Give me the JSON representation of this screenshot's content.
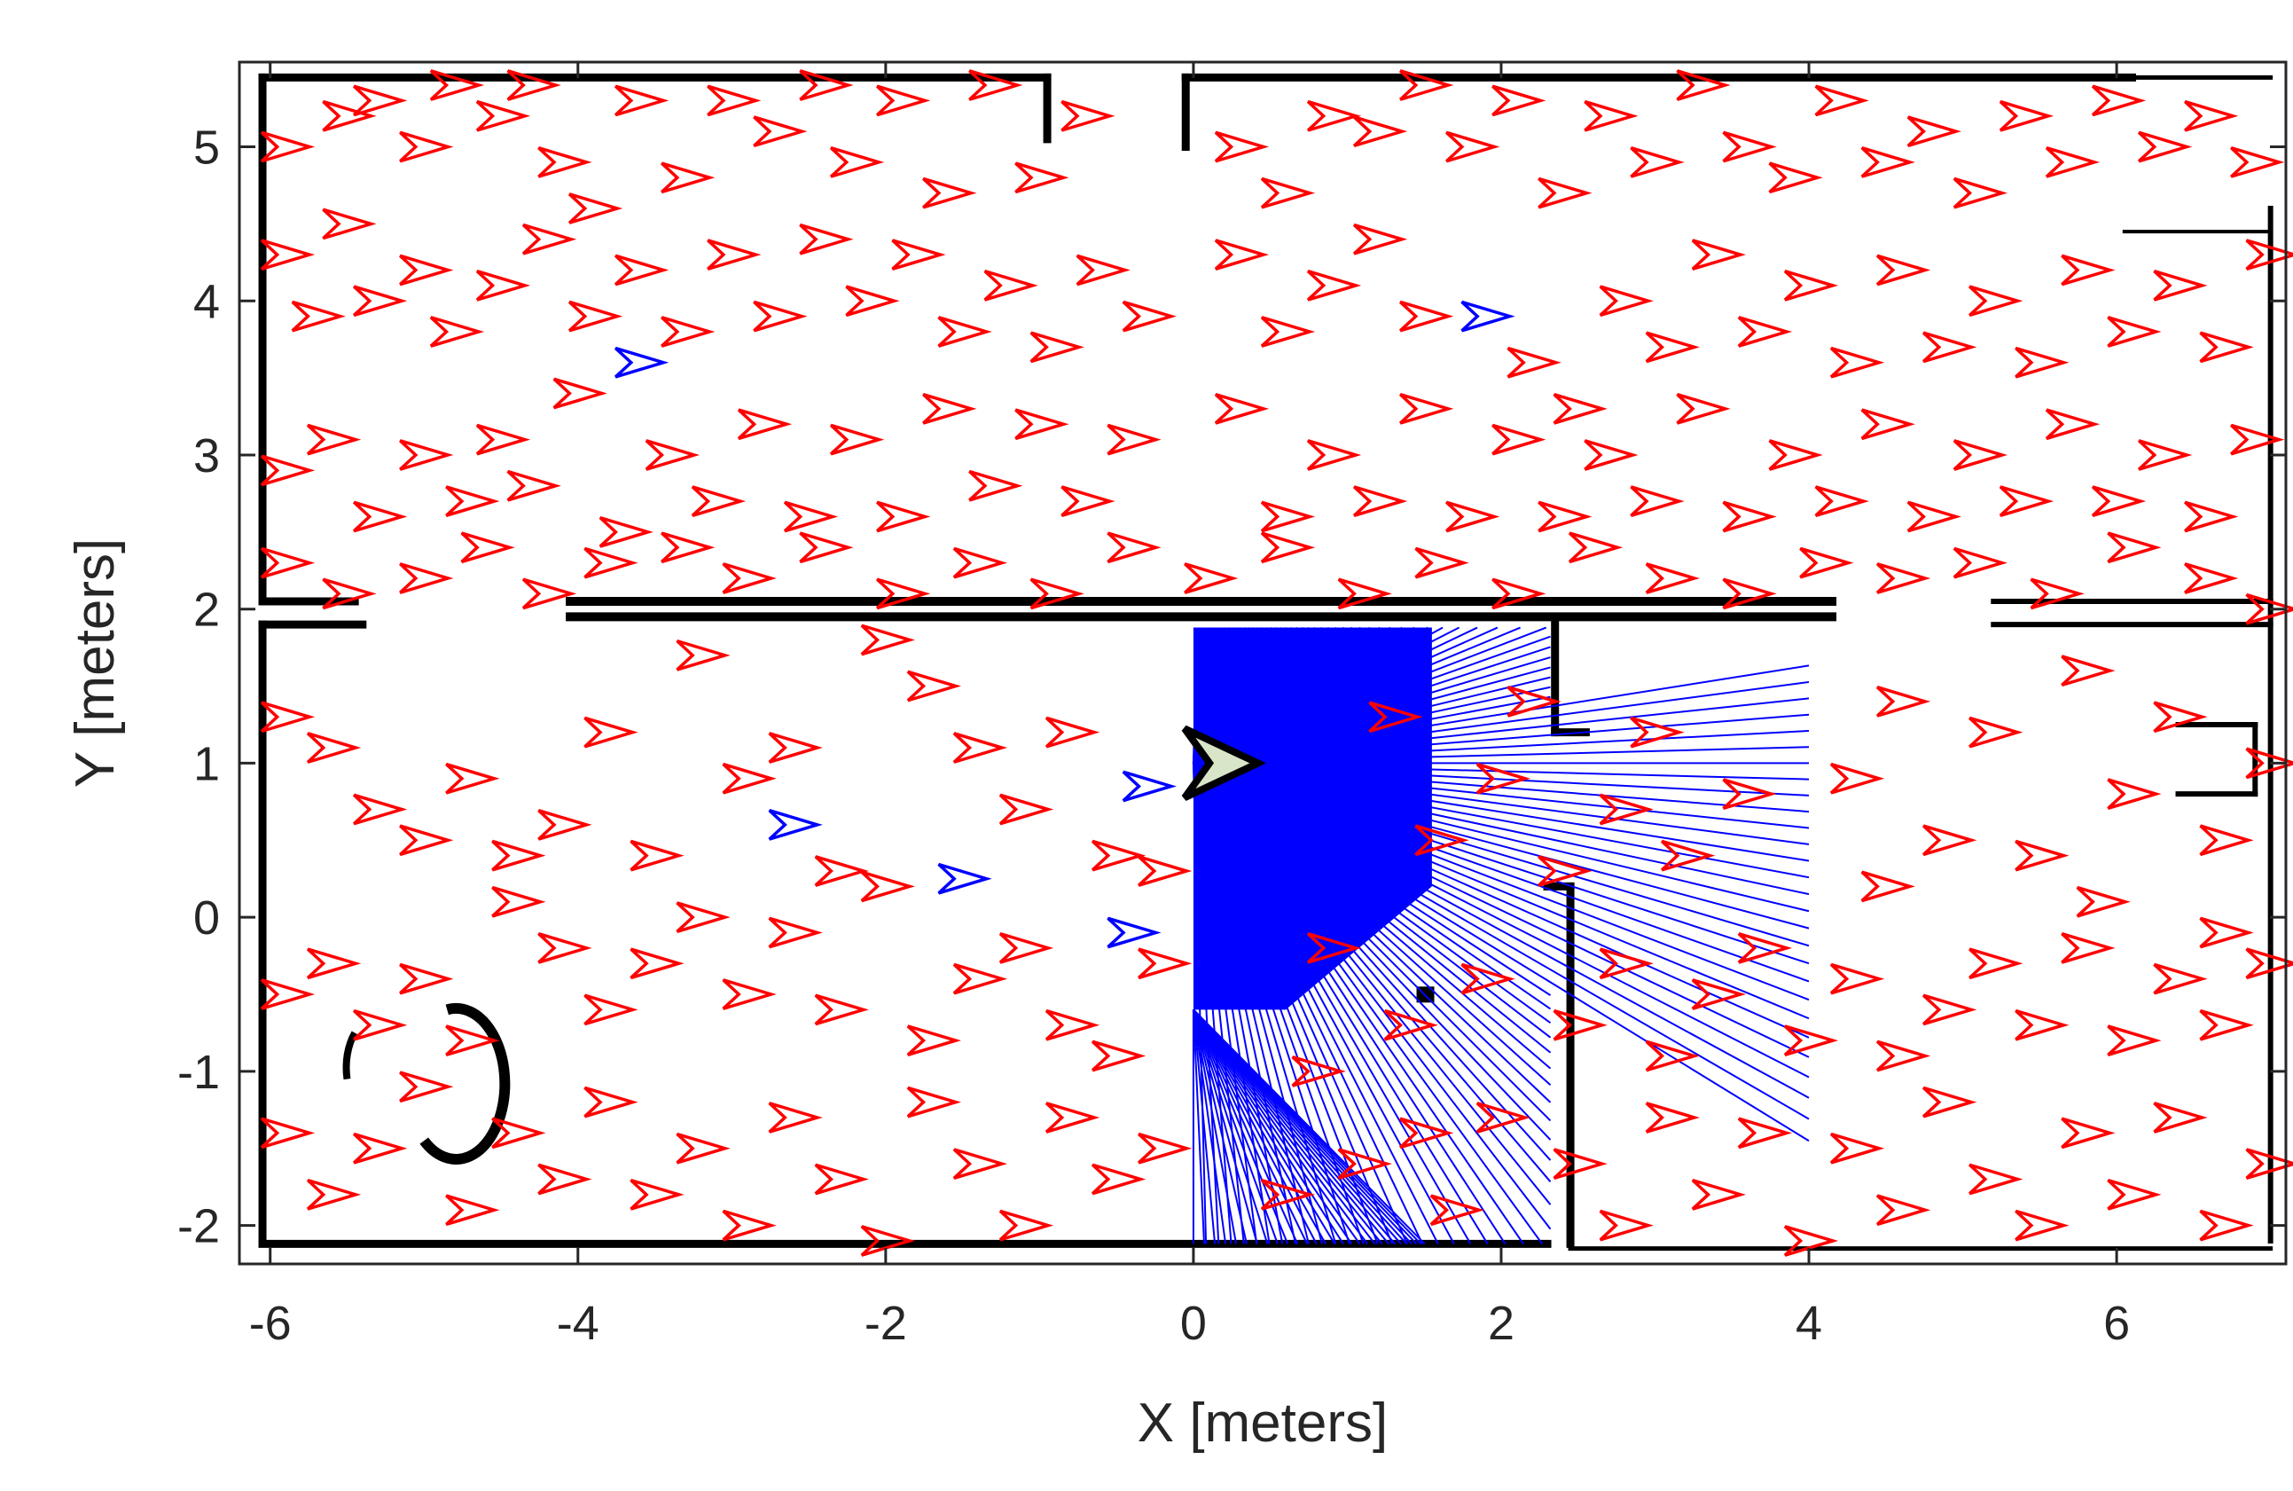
{
  "chart_data": {
    "type": "scatter",
    "title": "",
    "xlabel": "X [meters]",
    "ylabel": "Y [meters]",
    "xlim": [
      -6.2,
      7.1
    ],
    "ylim": [
      -2.25,
      5.55
    ],
    "x_ticks": [
      -6,
      -4,
      -2,
      0,
      2,
      4,
      6
    ],
    "y_ticks": [
      -2,
      -1,
      0,
      1,
      2,
      3,
      4,
      5
    ],
    "x_tick_labels": [
      "-6",
      "-4",
      "-2",
      "0",
      "2",
      "4",
      "6"
    ],
    "y_tick_labels": [
      "-2",
      "-1",
      "0",
      "1",
      "2",
      "3",
      "4",
      "5"
    ],
    "grid": false,
    "colors": {
      "particles": "#ff0000",
      "best_particles": "#0000ff",
      "laser_beams": "#0000ff",
      "robot_fill": "#d9e5c8",
      "robot_edge": "#000000",
      "map_walls": "#000000",
      "axes": "#262626"
    },
    "robot_pose": {
      "x": 0.0,
      "y": 1.0,
      "theta": 0
    },
    "best_particles": [
      {
        "x": -3.6,
        "y": 3.6
      },
      {
        "x": 1.9,
        "y": 3.9
      },
      {
        "x": -2.6,
        "y": 0.6
      },
      {
        "x": -1.5,
        "y": 0.25
      },
      {
        "x": -0.4,
        "y": -0.1
      },
      {
        "x": -0.3,
        "y": 0.85
      }
    ],
    "particles": [
      [
        -5.9,
        5.0
      ],
      [
        -5.5,
        5.2
      ],
      [
        -5.3,
        5.3
      ],
      [
        -5.0,
        5.0
      ],
      [
        -4.8,
        5.4
      ],
      [
        -4.5,
        5.2
      ],
      [
        -4.3,
        5.4
      ],
      [
        -4.1,
        4.9
      ],
      [
        -3.9,
        4.6
      ],
      [
        -3.6,
        5.3
      ],
      [
        -3.3,
        4.8
      ],
      [
        -3.0,
        5.3
      ],
      [
        -2.7,
        5.1
      ],
      [
        -2.4,
        5.4
      ],
      [
        -2.2,
        4.9
      ],
      [
        -1.9,
        5.3
      ],
      [
        -1.6,
        4.7
      ],
      [
        -1.3,
        5.4
      ],
      [
        -1.0,
        4.8
      ],
      [
        -0.7,
        5.2
      ],
      [
        0.3,
        5.0
      ],
      [
        0.6,
        4.7
      ],
      [
        0.9,
        5.2
      ],
      [
        1.2,
        5.1
      ],
      [
        1.5,
        5.4
      ],
      [
        1.8,
        5.0
      ],
      [
        2.1,
        5.3
      ],
      [
        2.4,
        4.7
      ],
      [
        2.7,
        5.2
      ],
      [
        3.0,
        4.9
      ],
      [
        3.3,
        5.4
      ],
      [
        3.6,
        5.0
      ],
      [
        3.9,
        4.8
      ],
      [
        4.2,
        5.3
      ],
      [
        4.5,
        4.9
      ],
      [
        4.8,
        5.1
      ],
      [
        5.1,
        4.7
      ],
      [
        5.4,
        5.2
      ],
      [
        5.7,
        4.9
      ],
      [
        6.0,
        5.3
      ],
      [
        6.3,
        5.0
      ],
      [
        6.6,
        5.2
      ],
      [
        6.9,
        4.9
      ],
      [
        -5.9,
        4.3
      ],
      [
        -5.7,
        3.9
      ],
      [
        -5.5,
        4.5
      ],
      [
        -5.3,
        4.0
      ],
      [
        -5.0,
        4.2
      ],
      [
        -4.8,
        3.8
      ],
      [
        -4.5,
        4.1
      ],
      [
        -4.2,
        4.4
      ],
      [
        -3.9,
        3.9
      ],
      [
        -3.6,
        4.2
      ],
      [
        -3.3,
        3.8
      ],
      [
        -3.0,
        4.3
      ],
      [
        -2.7,
        3.9
      ],
      [
        -2.4,
        4.4
      ],
      [
        -2.1,
        4.0
      ],
      [
        -1.8,
        4.3
      ],
      [
        -1.5,
        3.8
      ],
      [
        -1.2,
        4.1
      ],
      [
        -0.9,
        3.7
      ],
      [
        -0.6,
        4.2
      ],
      [
        -0.3,
        3.9
      ],
      [
        0.3,
        4.3
      ],
      [
        0.6,
        3.8
      ],
      [
        0.9,
        4.1
      ],
      [
        1.2,
        4.4
      ],
      [
        1.5,
        3.9
      ],
      [
        2.2,
        3.6
      ],
      [
        2.5,
        3.3
      ],
      [
        2.8,
        4.0
      ],
      [
        3.1,
        3.7
      ],
      [
        3.4,
        4.3
      ],
      [
        3.7,
        3.8
      ],
      [
        4.0,
        4.1
      ],
      [
        4.3,
        3.6
      ],
      [
        4.6,
        4.2
      ],
      [
        4.9,
        3.7
      ],
      [
        5.2,
        4.0
      ],
      [
        5.5,
        3.6
      ],
      [
        5.8,
        4.2
      ],
      [
        6.1,
        3.8
      ],
      [
        6.4,
        4.1
      ],
      [
        6.7,
        3.7
      ],
      [
        7.0,
        4.3
      ],
      [
        -5.9,
        2.9
      ],
      [
        -5.6,
        3.1
      ],
      [
        -5.3,
        2.6
      ],
      [
        -5.0,
        3.0
      ],
      [
        -4.7,
        2.7
      ],
      [
        -4.5,
        3.1
      ],
      [
        -4.3,
        2.8
      ],
      [
        -4.0,
        3.4
      ],
      [
        -3.7,
        2.5
      ],
      [
        -3.4,
        3.0
      ],
      [
        -3.1,
        2.7
      ],
      [
        -2.8,
        3.2
      ],
      [
        -2.5,
        2.6
      ],
      [
        -2.2,
        3.1
      ],
      [
        -1.9,
        2.6
      ],
      [
        -1.6,
        3.3
      ],
      [
        -1.3,
        2.8
      ],
      [
        -1.0,
        3.2
      ],
      [
        -0.7,
        2.7
      ],
      [
        -0.4,
        3.1
      ],
      [
        0.3,
        3.3
      ],
      [
        0.6,
        2.6
      ],
      [
        0.9,
        3.0
      ],
      [
        1.2,
        2.7
      ],
      [
        1.5,
        3.3
      ],
      [
        1.8,
        2.6
      ],
      [
        2.1,
        3.1
      ],
      [
        2.4,
        2.6
      ],
      [
        2.7,
        3.0
      ],
      [
        3.0,
        2.7
      ],
      [
        3.3,
        3.3
      ],
      [
        3.6,
        2.6
      ],
      [
        3.9,
        3.0
      ],
      [
        4.2,
        2.7
      ],
      [
        4.5,
        3.2
      ],
      [
        4.8,
        2.6
      ],
      [
        5.1,
        3.0
      ],
      [
        5.4,
        2.7
      ],
      [
        5.7,
        3.2
      ],
      [
        6.0,
        2.7
      ],
      [
        6.3,
        3.0
      ],
      [
        6.6,
        2.6
      ],
      [
        6.9,
        3.1
      ],
      [
        -5.9,
        2.3
      ],
      [
        -5.5,
        2.1
      ],
      [
        -5.0,
        2.2
      ],
      [
        -4.6,
        2.4
      ],
      [
        -4.2,
        2.1
      ],
      [
        -3.8,
        2.3
      ],
      [
        -3.3,
        2.4
      ],
      [
        -2.9,
        2.2
      ],
      [
        -2.4,
        2.4
      ],
      [
        -1.9,
        2.1
      ],
      [
        -1.4,
        2.3
      ],
      [
        -0.9,
        2.1
      ],
      [
        -0.4,
        2.4
      ],
      [
        0.1,
        2.2
      ],
      [
        0.6,
        2.4
      ],
      [
        1.1,
        2.1
      ],
      [
        1.6,
        2.3
      ],
      [
        2.1,
        2.1
      ],
      [
        2.6,
        2.4
      ],
      [
        3.1,
        2.2
      ],
      [
        3.6,
        2.1
      ],
      [
        4.1,
        2.3
      ],
      [
        4.6,
        2.2
      ],
      [
        5.1,
        2.3
      ],
      [
        5.6,
        2.1
      ],
      [
        6.1,
        2.4
      ],
      [
        6.6,
        2.2
      ],
      [
        7.0,
        2.0
      ],
      [
        -5.9,
        1.3
      ],
      [
        -5.6,
        1.1
      ],
      [
        -5.3,
        0.7
      ],
      [
        -5.0,
        0.5
      ],
      [
        -4.7,
        0.9
      ],
      [
        -4.4,
        0.4
      ],
      [
        -4.1,
        0.6
      ],
      [
        -3.8,
        1.2
      ],
      [
        -3.5,
        0.4
      ],
      [
        -3.2,
        1.7
      ],
      [
        -2.9,
        0.9
      ],
      [
        -2.6,
        1.1
      ],
      [
        -2.3,
        0.3
      ],
      [
        -2.0,
        1.8
      ],
      [
        -1.7,
        1.5
      ],
      [
        -1.4,
        1.1
      ],
      [
        -1.1,
        0.7
      ],
      [
        -0.8,
        1.2
      ],
      [
        -0.5,
        0.4
      ],
      [
        -0.2,
        0.3
      ],
      [
        4.3,
        0.9
      ],
      [
        4.6,
        1.4
      ],
      [
        4.9,
        0.5
      ],
      [
        5.2,
        1.2
      ],
      [
        5.5,
        0.4
      ],
      [
        5.8,
        1.6
      ],
      [
        6.1,
        0.8
      ],
      [
        6.4,
        1.3
      ],
      [
        6.7,
        0.5
      ],
      [
        7.0,
        1.0
      ],
      [
        4.5,
        0.2
      ],
      [
        5.9,
        0.1
      ],
      [
        6.7,
        -0.1
      ],
      [
        -5.9,
        -0.5
      ],
      [
        -5.6,
        -0.3
      ],
      [
        -5.3,
        -0.7
      ],
      [
        -5.0,
        -0.4
      ],
      [
        -4.7,
        -0.8
      ],
      [
        -4.4,
        0.1
      ],
      [
        -4.1,
        -0.2
      ],
      [
        -3.8,
        -0.6
      ],
      [
        -3.5,
        -0.3
      ],
      [
        -3.2,
        0.0
      ],
      [
        -2.9,
        -0.5
      ],
      [
        -2.6,
        -0.1
      ],
      [
        -2.3,
        -0.6
      ],
      [
        -2.0,
        0.2
      ],
      [
        -1.7,
        -0.8
      ],
      [
        -1.4,
        -0.4
      ],
      [
        -1.1,
        -0.2
      ],
      [
        -0.8,
        -0.7
      ],
      [
        -0.5,
        -0.9
      ],
      [
        -0.2,
        -0.3
      ],
      [
        2.5,
        -0.7
      ],
      [
        2.8,
        -0.3
      ],
      [
        3.1,
        -0.9
      ],
      [
        3.4,
        -0.5
      ],
      [
        3.7,
        -0.2
      ],
      [
        4.0,
        -0.8
      ],
      [
        4.3,
        -0.4
      ],
      [
        4.6,
        -0.9
      ],
      [
        4.9,
        -0.6
      ],
      [
        5.2,
        -0.3
      ],
      [
        5.5,
        -0.7
      ],
      [
        5.8,
        -0.2
      ],
      [
        6.1,
        -0.8
      ],
      [
        6.4,
        -0.4
      ],
      [
        6.7,
        -0.7
      ],
      [
        7.0,
        -0.3
      ],
      [
        -5.9,
        -1.4
      ],
      [
        -5.6,
        -1.8
      ],
      [
        -5.3,
        -1.5
      ],
      [
        -5.0,
        -1.1
      ],
      [
        -4.7,
        -1.9
      ],
      [
        -4.4,
        -1.4
      ],
      [
        -4.1,
        -1.7
      ],
      [
        -3.8,
        -1.2
      ],
      [
        -3.5,
        -1.8
      ],
      [
        -3.2,
        -1.5
      ],
      [
        -2.9,
        -2.0
      ],
      [
        -2.6,
        -1.3
      ],
      [
        -2.3,
        -1.7
      ],
      [
        -2.0,
        -2.1
      ],
      [
        -1.7,
        -1.2
      ],
      [
        -1.4,
        -1.6
      ],
      [
        -1.1,
        -2.0
      ],
      [
        -0.8,
        -1.3
      ],
      [
        -0.5,
        -1.7
      ],
      [
        -0.2,
        -1.5
      ],
      [
        2.5,
        -1.6
      ],
      [
        2.8,
        -2.0
      ],
      [
        3.1,
        -1.3
      ],
      [
        3.4,
        -1.8
      ],
      [
        3.7,
        -1.4
      ],
      [
        4.0,
        -2.1
      ],
      [
        4.3,
        -1.5
      ],
      [
        4.6,
        -1.9
      ],
      [
        4.9,
        -1.2
      ],
      [
        5.2,
        -1.7
      ],
      [
        5.5,
        -2.0
      ],
      [
        5.8,
        -1.4
      ],
      [
        6.1,
        -1.8
      ],
      [
        6.4,
        -1.3
      ],
      [
        6.7,
        -2.0
      ],
      [
        7.0,
        -1.6
      ],
      [
        0.8,
        -1.0
      ],
      [
        1.1,
        -1.6
      ],
      [
        1.4,
        -0.7
      ],
      [
        1.7,
        -1.9
      ],
      [
        2.0,
        -1.3
      ],
      [
        0.6,
        -1.8
      ],
      [
        1.5,
        -1.4
      ],
      [
        1.9,
        -0.4
      ],
      [
        0.9,
        -0.2
      ],
      [
        1.6,
        0.5
      ],
      [
        2.0,
        0.9
      ],
      [
        2.4,
        0.3
      ],
      [
        2.8,
        0.7
      ],
      [
        3.2,
        0.4
      ],
      [
        3.6,
        0.8
      ],
      [
        3.0,
        1.2
      ],
      [
        2.2,
        1.4
      ],
      [
        1.3,
        1.3
      ]
    ]
  }
}
